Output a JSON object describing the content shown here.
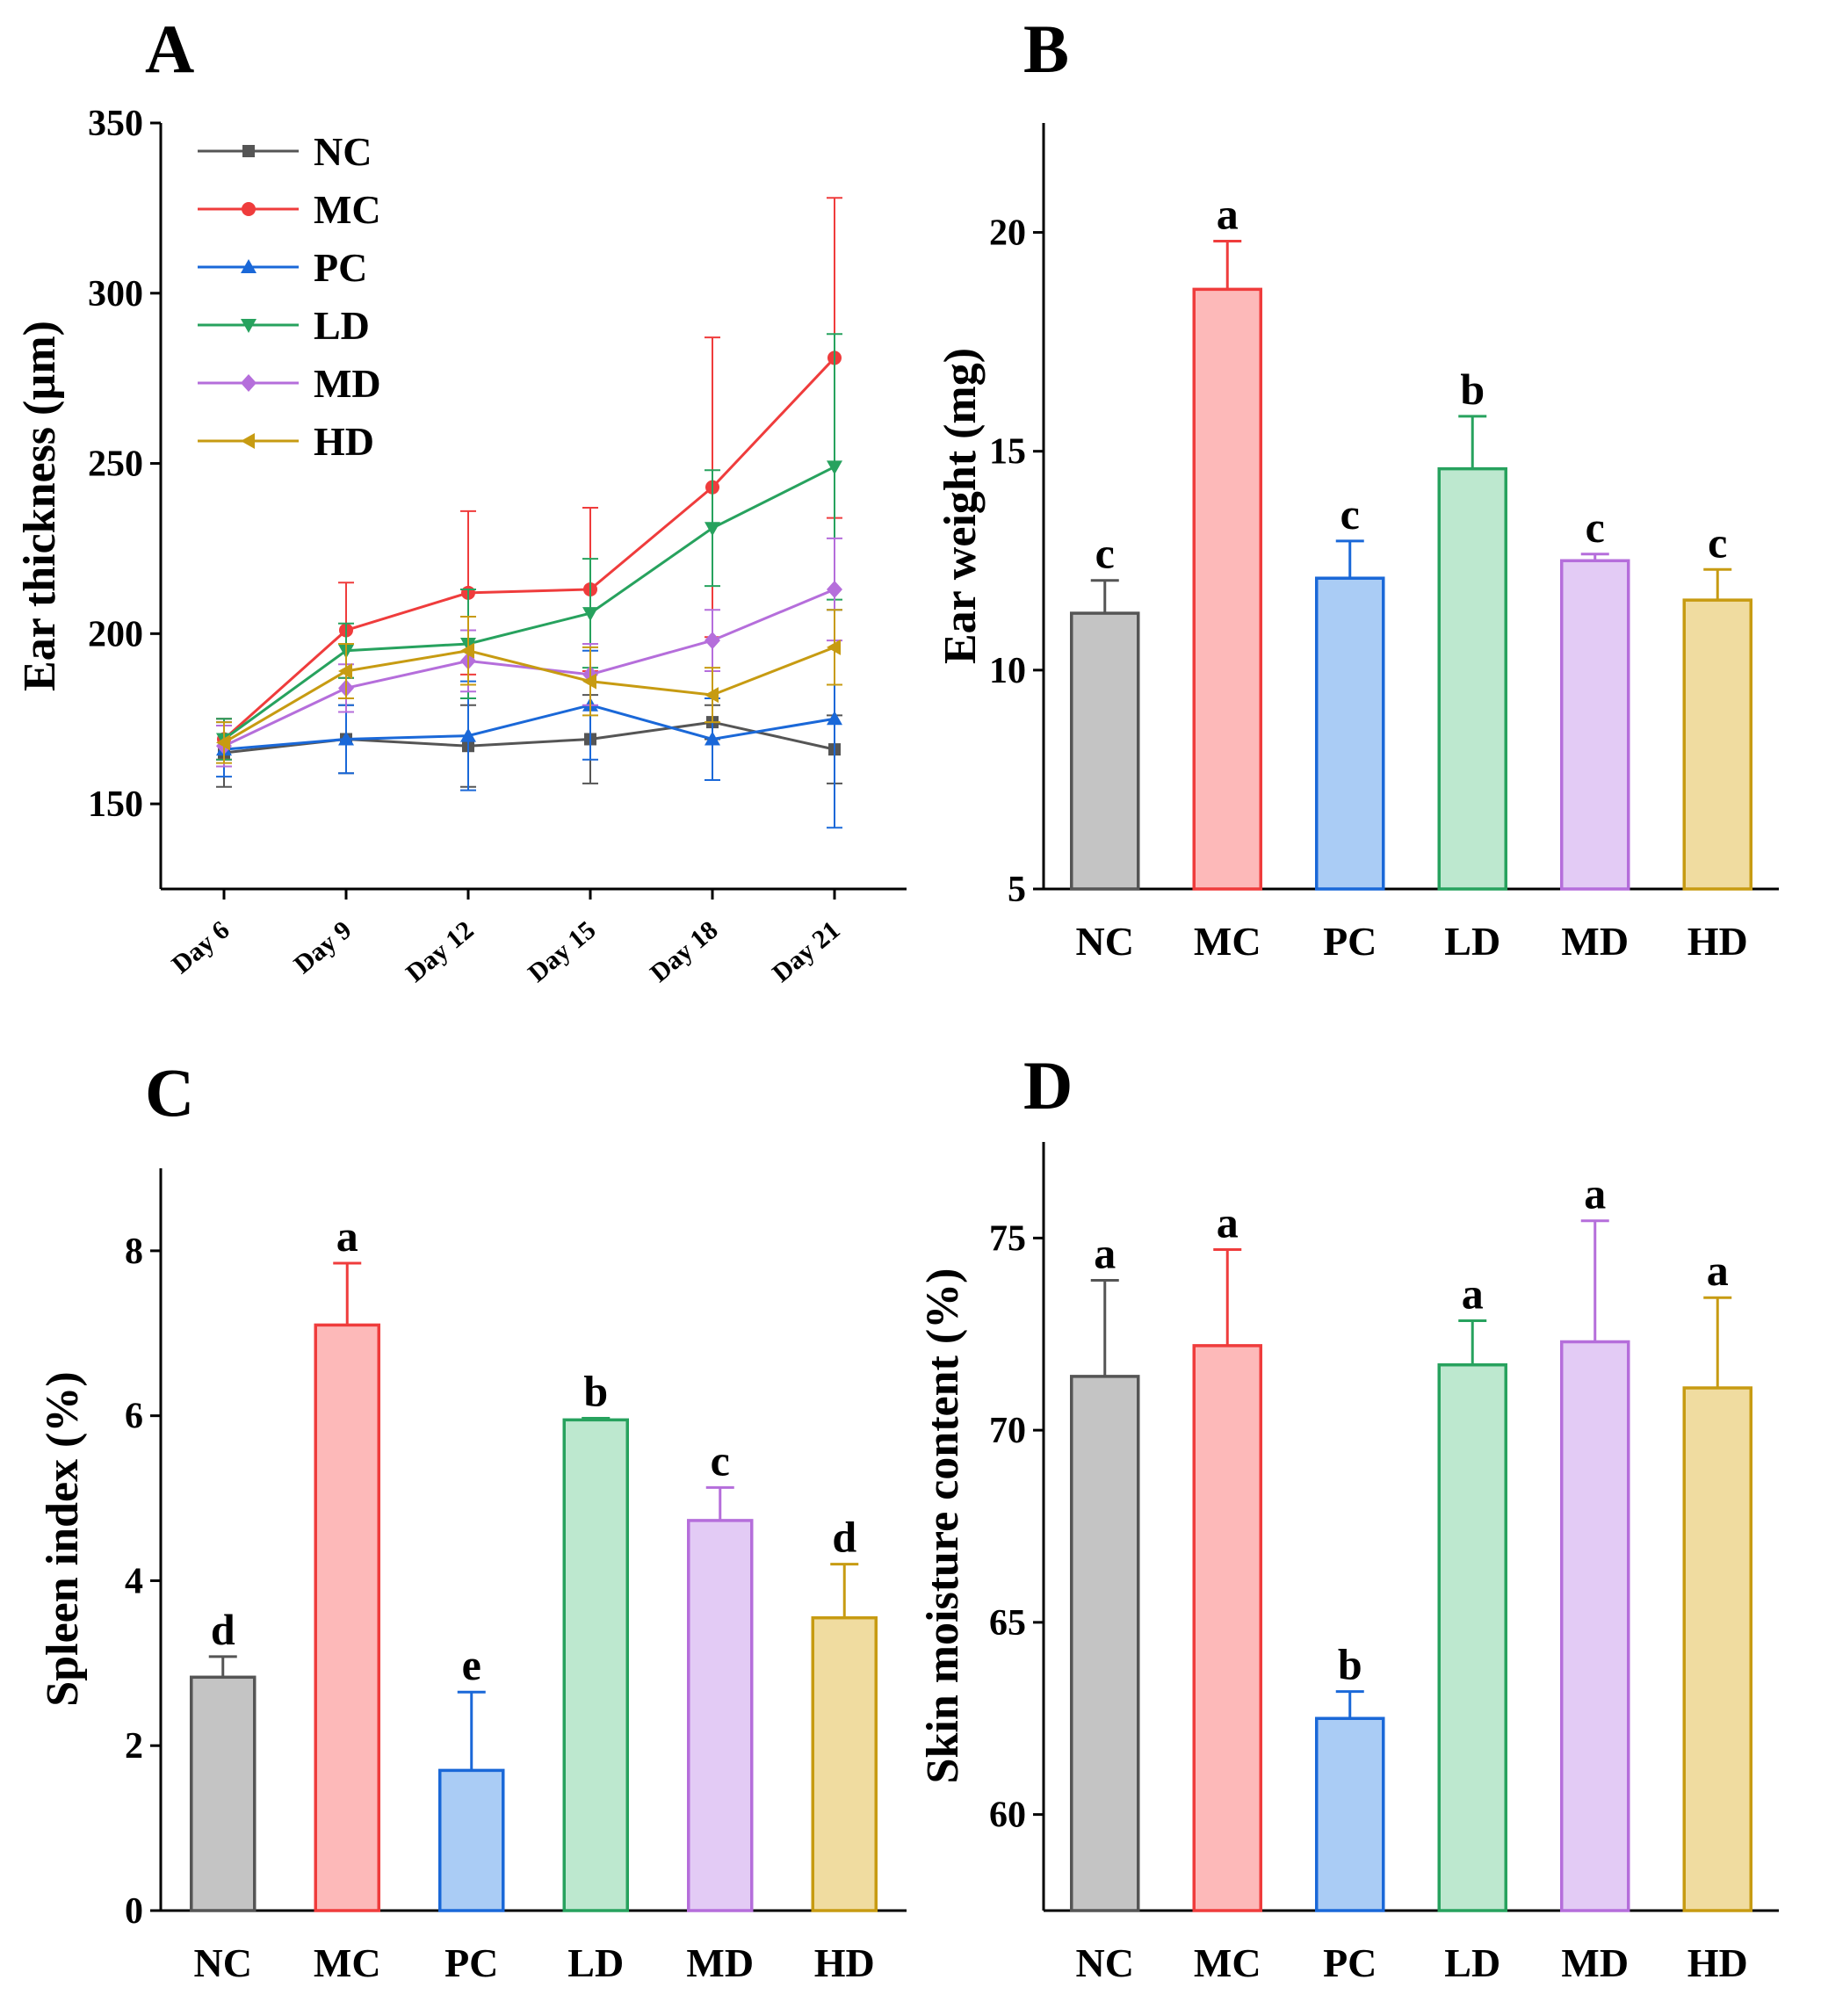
{
  "chart_data": [
    {
      "panel": "A",
      "type": "line",
      "ylabel": "Ear thickness (µm)",
      "xlabel": "",
      "categories": [
        "Day 6",
        "Day 9",
        "Day 12",
        "Day 15",
        "Day 18",
        "Day 21"
      ],
      "ylim": [
        125,
        350
      ],
      "yticks": [
        150,
        200,
        250,
        300,
        350
      ],
      "legend_position": "top-left",
      "series": [
        {
          "name": "NC",
          "color": "#555555",
          "marker": "square",
          "values": [
            165,
            169,
            167,
            169,
            174,
            166
          ],
          "errors": [
            10,
            10,
            12,
            13,
            5,
            10
          ]
        },
        {
          "name": "MC",
          "color": "#EF3C3C",
          "marker": "circle",
          "values": [
            169,
            201,
            212,
            213,
            243,
            281
          ],
          "errors": [
            6,
            14,
            24,
            24,
            44,
            47
          ]
        },
        {
          "name": "PC",
          "color": "#1A68D8",
          "marker": "triangle-up",
          "values": [
            166,
            169,
            170,
            179,
            169,
            175
          ],
          "errors": [
            8,
            10,
            16,
            16,
            12,
            32
          ]
        },
        {
          "name": "LD",
          "color": "#27A25E",
          "marker": "triangle-down",
          "values": [
            169,
            195,
            197,
            206,
            231,
            249
          ],
          "errors": [
            6,
            8,
            16,
            16,
            17,
            39
          ]
        },
        {
          "name": "MD",
          "color": "#B56EDB",
          "marker": "diamond",
          "values": [
            167,
            184,
            192,
            188,
            198,
            213
          ],
          "errors": [
            6,
            7,
            9,
            9,
            9,
            15
          ]
        },
        {
          "name": "HD",
          "color": "#C79B12",
          "marker": "triangle-left",
          "values": [
            168,
            189,
            195,
            186,
            182,
            196
          ],
          "errors": [
            6,
            8,
            10,
            10,
            8,
            11
          ]
        }
      ]
    },
    {
      "panel": "B",
      "type": "bar",
      "ylabel": "Ear weight (mg)",
      "categories": [
        "NC",
        "MC",
        "PC",
        "LD",
        "MD",
        "HD"
      ],
      "values": [
        11.3,
        18.7,
        12.1,
        14.6,
        12.5,
        11.6
      ],
      "errors": [
        0.75,
        1.1,
        0.85,
        1.2,
        0.15,
        0.7
      ],
      "significance": [
        "c",
        "a",
        "c",
        "b",
        "c",
        "c"
      ],
      "ylim": [
        5,
        22.5
      ],
      "yticks": [
        5,
        10,
        15,
        20
      ],
      "colors": [
        "#555555",
        "#EF3C3C",
        "#1A68D8",
        "#27A25E",
        "#B56EDB",
        "#C79B12"
      ],
      "fills": [
        "#C4C4C4",
        "#FDB9B9",
        "#AACCF5",
        "#BDE8CF",
        "#E3CBF5",
        "#F0DCA0"
      ]
    },
    {
      "panel": "C",
      "type": "bar",
      "ylabel": "Spleen index (%)",
      "categories": [
        "NC",
        "MC",
        "PC",
        "LD",
        "MD",
        "HD"
      ],
      "values": [
        2.83,
        7.1,
        1.7,
        5.95,
        4.73,
        3.55
      ],
      "errors": [
        0.25,
        0.75,
        0.95,
        0.02,
        0.4,
        0.65
      ],
      "significance": [
        "d",
        "a",
        "e",
        "b",
        "c",
        "d"
      ],
      "ylim": [
        0,
        9
      ],
      "yticks": [
        0,
        2,
        4,
        6,
        8
      ],
      "colors": [
        "#555555",
        "#EF3C3C",
        "#1A68D8",
        "#27A25E",
        "#B56EDB",
        "#C79B12"
      ],
      "fills": [
        "#C4C4C4",
        "#FDB9B9",
        "#AACCF5",
        "#BDE8CF",
        "#E3CBF5",
        "#F0DCA0"
      ]
    },
    {
      "panel": "D",
      "type": "bar",
      "ylabel": "Skin moisture content (%)",
      "categories": [
        "NC",
        "MC",
        "PC",
        "LD",
        "MD",
        "HD"
      ],
      "values": [
        71.4,
        72.2,
        62.5,
        71.7,
        72.3,
        71.1
      ],
      "errors": [
        2.5,
        2.5,
        0.7,
        1.15,
        3.15,
        2.35
      ],
      "significance": [
        "a",
        "a",
        "b",
        "a",
        "a",
        "a"
      ],
      "ylim": [
        57.5,
        77.5
      ],
      "yticks": [
        60,
        65,
        70,
        75
      ],
      "colors": [
        "#555555",
        "#EF3C3C",
        "#1A68D8",
        "#27A25E",
        "#B56EDB",
        "#C79B12"
      ],
      "fills": [
        "#C4C4C4",
        "#FDB9B9",
        "#AACCF5",
        "#BDE8CF",
        "#E3CBF5",
        "#F0DCA0"
      ]
    }
  ]
}
